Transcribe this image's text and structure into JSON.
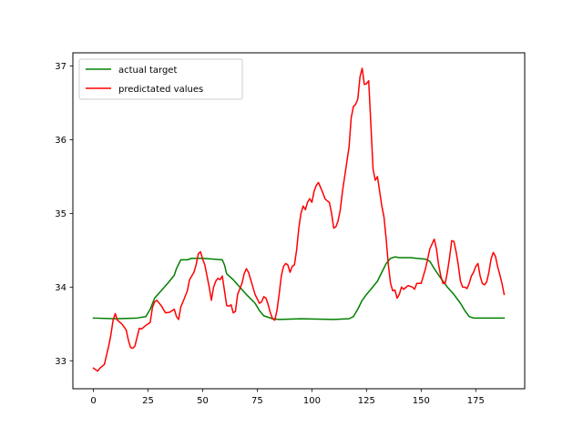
{
  "chart_data": {
    "type": "line",
    "title": "",
    "xlabel": "",
    "ylabel": "",
    "xlim": [
      -9.4,
      197.4
    ],
    "ylim": [
      32.62,
      37.18
    ],
    "x_ticks": [
      0,
      25,
      50,
      75,
      100,
      125,
      150,
      175
    ],
    "y_ticks": [
      33,
      34,
      35,
      36,
      37
    ],
    "grid": false,
    "legend_position": "upper-left",
    "series": [
      {
        "name": "actual target",
        "color": "#008000",
        "points": [
          [
            0,
            33.58
          ],
          [
            10,
            33.57
          ],
          [
            20,
            33.58
          ],
          [
            24,
            33.6
          ],
          [
            26,
            33.7
          ],
          [
            28,
            33.85
          ],
          [
            31,
            33.95
          ],
          [
            34,
            34.05
          ],
          [
            37,
            34.16
          ],
          [
            38,
            34.25
          ],
          [
            40,
            34.37
          ],
          [
            43,
            34.37
          ],
          [
            45,
            34.39
          ],
          [
            50,
            34.39
          ],
          [
            55,
            34.38
          ],
          [
            59,
            34.37
          ],
          [
            60,
            34.3
          ],
          [
            61,
            34.18
          ],
          [
            64,
            34.1
          ],
          [
            67,
            34.0
          ],
          [
            70,
            33.9
          ],
          [
            74,
            33.78
          ],
          [
            76,
            33.68
          ],
          [
            78,
            33.61
          ],
          [
            80,
            33.59
          ],
          [
            82,
            33.57
          ],
          [
            85,
            33.56
          ],
          [
            95,
            33.57
          ],
          [
            110,
            33.56
          ],
          [
            117,
            33.57
          ],
          [
            119,
            33.6
          ],
          [
            121,
            33.7
          ],
          [
            123,
            33.82
          ],
          [
            125,
            33.9
          ],
          [
            127,
            33.97
          ],
          [
            130,
            34.08
          ],
          [
            132,
            34.2
          ],
          [
            134,
            34.32
          ],
          [
            136,
            34.39
          ],
          [
            138,
            34.41
          ],
          [
            140,
            34.4
          ],
          [
            145,
            34.4
          ],
          [
            148,
            34.39
          ],
          [
            152,
            34.38
          ],
          [
            154,
            34.35
          ],
          [
            156,
            34.25
          ],
          [
            159,
            34.12
          ],
          [
            162,
            34.0
          ],
          [
            165,
            33.9
          ],
          [
            168,
            33.78
          ],
          [
            170,
            33.68
          ],
          [
            172,
            33.6
          ],
          [
            174,
            33.58
          ],
          [
            176,
            33.58
          ],
          [
            188,
            33.58
          ]
        ]
      },
      {
        "name": "predictated values",
        "color": "#ff0000",
        "points": [
          [
            0,
            32.9
          ],
          [
            2,
            32.86
          ],
          [
            3,
            32.9
          ],
          [
            5,
            32.95
          ],
          [
            7,
            33.2
          ],
          [
            8,
            33.35
          ],
          [
            9,
            33.55
          ],
          [
            10,
            33.64
          ],
          [
            11,
            33.55
          ],
          [
            13,
            33.5
          ],
          [
            15,
            33.42
          ],
          [
            16,
            33.28
          ],
          [
            17,
            33.18
          ],
          [
            18,
            33.17
          ],
          [
            19,
            33.2
          ],
          [
            21,
            33.44
          ],
          [
            22,
            33.43
          ],
          [
            24,
            33.48
          ],
          [
            26,
            33.52
          ],
          [
            27,
            33.72
          ],
          [
            28,
            33.8
          ],
          [
            29,
            33.82
          ],
          [
            31,
            33.75
          ],
          [
            33,
            33.65
          ],
          [
            35,
            33.66
          ],
          [
            37,
            33.7
          ],
          [
            38,
            33.6
          ],
          [
            39,
            33.56
          ],
          [
            40,
            33.73
          ],
          [
            41,
            33.8
          ],
          [
            43,
            33.95
          ],
          [
            44,
            34.1
          ],
          [
            46,
            34.2
          ],
          [
            47,
            34.3
          ],
          [
            48,
            34.45
          ],
          [
            49,
            34.48
          ],
          [
            50,
            34.38
          ],
          [
            51,
            34.3
          ],
          [
            52,
            34.15
          ],
          [
            53,
            34.0
          ],
          [
            54,
            33.82
          ],
          [
            55,
            34.0
          ],
          [
            56,
            34.08
          ],
          [
            57,
            34.12
          ],
          [
            58,
            34.1
          ],
          [
            59,
            34.15
          ],
          [
            60,
            33.95
          ],
          [
            61,
            33.75
          ],
          [
            62,
            33.74
          ],
          [
            63,
            33.76
          ],
          [
            64,
            33.65
          ],
          [
            65,
            33.67
          ],
          [
            66,
            33.9
          ],
          [
            68,
            34.05
          ],
          [
            69,
            34.18
          ],
          [
            70,
            34.25
          ],
          [
            71,
            34.2
          ],
          [
            72,
            34.1
          ],
          [
            73,
            34.0
          ],
          [
            74,
            33.9
          ],
          [
            76,
            33.78
          ],
          [
            77,
            33.8
          ],
          [
            78,
            33.87
          ],
          [
            79,
            33.85
          ],
          [
            80,
            33.76
          ],
          [
            81,
            33.65
          ],
          [
            82,
            33.57
          ],
          [
            83,
            33.55
          ],
          [
            84,
            33.68
          ],
          [
            85,
            33.9
          ],
          [
            86,
            34.15
          ],
          [
            87,
            34.28
          ],
          [
            88,
            34.32
          ],
          [
            89,
            34.3
          ],
          [
            90,
            34.2
          ],
          [
            91,
            34.28
          ],
          [
            92,
            34.3
          ],
          [
            93,
            34.5
          ],
          [
            94,
            34.8
          ],
          [
            95,
            35.0
          ],
          [
            96,
            35.1
          ],
          [
            97,
            35.05
          ],
          [
            98,
            35.15
          ],
          [
            99,
            35.2
          ],
          [
            100,
            35.15
          ],
          [
            101,
            35.3
          ],
          [
            102,
            35.38
          ],
          [
            103,
            35.42
          ],
          [
            104,
            35.35
          ],
          [
            105,
            35.28
          ],
          [
            106,
            35.2
          ],
          [
            107,
            35.17
          ],
          [
            108,
            35.15
          ],
          [
            109,
            35.0
          ],
          [
            110,
            34.8
          ],
          [
            111,
            34.82
          ],
          [
            112,
            34.9
          ],
          [
            113,
            35.05
          ],
          [
            114,
            35.3
          ],
          [
            115,
            35.5
          ],
          [
            116,
            35.7
          ],
          [
            117,
            35.9
          ],
          [
            118,
            36.3
          ],
          [
            119,
            36.45
          ],
          [
            120,
            36.48
          ],
          [
            121,
            36.55
          ],
          [
            122,
            36.85
          ],
          [
            123,
            36.97
          ],
          [
            124,
            36.75
          ],
          [
            125,
            36.76
          ],
          [
            126,
            36.8
          ],
          [
            127,
            36.2
          ],
          [
            128,
            35.6
          ],
          [
            129,
            35.45
          ],
          [
            130,
            35.5
          ],
          [
            131,
            35.3
          ],
          [
            132,
            35.1
          ],
          [
            133,
            34.95
          ],
          [
            134,
            34.65
          ],
          [
            135,
            34.3
          ],
          [
            136,
            34.05
          ],
          [
            137,
            33.95
          ],
          [
            138,
            33.96
          ],
          [
            139,
            33.85
          ],
          [
            140,
            33.9
          ],
          [
            141,
            34.0
          ],
          [
            142,
            33.97
          ],
          [
            144,
            34.02
          ],
          [
            146,
            34.0
          ],
          [
            147,
            33.97
          ],
          [
            148,
            34.05
          ],
          [
            150,
            34.05
          ],
          [
            152,
            34.25
          ],
          [
            154,
            34.52
          ],
          [
            156,
            34.65
          ],
          [
            157,
            34.52
          ],
          [
            158,
            34.3
          ],
          [
            159,
            34.15
          ],
          [
            160,
            34.05
          ],
          [
            161,
            34.05
          ],
          [
            162,
            34.2
          ],
          [
            163,
            34.4
          ],
          [
            164,
            34.63
          ],
          [
            165,
            34.62
          ],
          [
            166,
            34.48
          ],
          [
            167,
            34.3
          ],
          [
            168,
            34.08
          ],
          [
            169,
            34.0
          ],
          [
            170,
            34.0
          ],
          [
            171,
            33.98
          ],
          [
            172,
            34.05
          ],
          [
            173,
            34.15
          ],
          [
            174,
            34.2
          ],
          [
            175,
            34.28
          ],
          [
            176,
            34.32
          ],
          [
            177,
            34.15
          ],
          [
            178,
            34.05
          ],
          [
            179,
            34.03
          ],
          [
            180,
            34.07
          ],
          [
            181,
            34.2
          ],
          [
            182,
            34.38
          ],
          [
            183,
            34.47
          ],
          [
            184,
            34.42
          ],
          [
            185,
            34.28
          ],
          [
            186,
            34.17
          ],
          [
            187,
            34.05
          ],
          [
            188,
            33.9
          ]
        ]
      }
    ]
  }
}
